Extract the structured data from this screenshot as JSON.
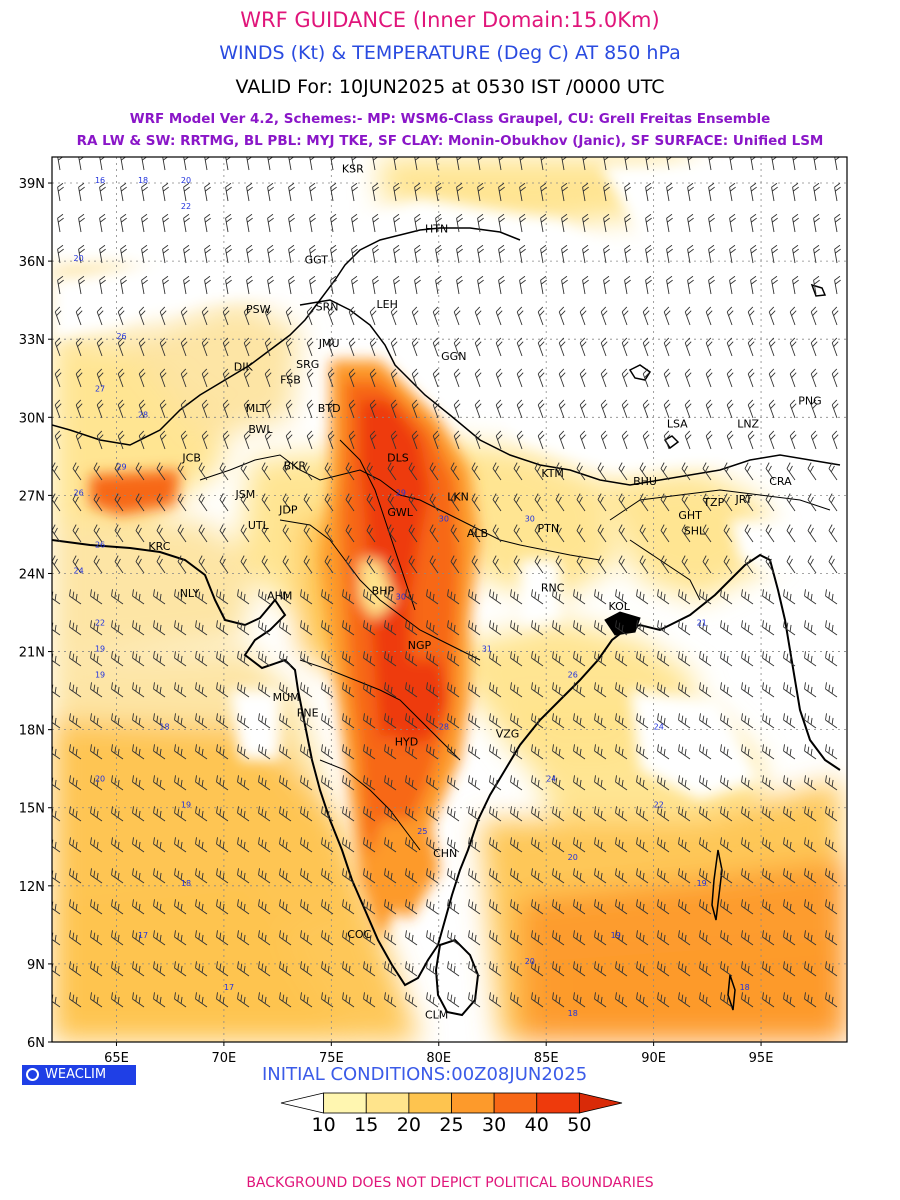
{
  "header": {
    "line1": "WRF GUIDANCE (Inner Domain:15.0Km)",
    "line2": "WINDS (Kt) & TEMPERATURE (Deg C) AT 850 hPa",
    "line3": "VALID For: 10JUN2025 at 0530 IST /0000 UTC",
    "line4": "WRF Model Ver 4.2, Schemes:- MP: WSM6-Class Graupel, CU: Grell Freitas Ensemble",
    "line5": "RA LW & SW: RRTMG, BL PBL: MYJ TKE, SF CLAY: Monin-Obukhov (Janic), SF SURFACE: Unified LSM"
  },
  "map": {
    "lat_labels": [
      "39N",
      "36N",
      "33N",
      "30N",
      "27N",
      "24N",
      "21N",
      "18N",
      "15N",
      "12N",
      "9N",
      "6N"
    ],
    "lon_labels": [
      "65E",
      "70E",
      "75E",
      "80E",
      "85E",
      "90E",
      "95E"
    ],
    "cities": [
      {
        "name": "KSR"
      },
      {
        "name": "HTN"
      },
      {
        "name": "GGT"
      },
      {
        "name": "PSW"
      },
      {
        "name": "SRN"
      },
      {
        "name": "LEH"
      },
      {
        "name": "JMU"
      },
      {
        "name": "GGN"
      },
      {
        "name": "DIK"
      },
      {
        "name": "SRG"
      },
      {
        "name": "FSB"
      },
      {
        "name": "MLT"
      },
      {
        "name": "BTD"
      },
      {
        "name": "BWL"
      },
      {
        "name": "DLS"
      },
      {
        "name": "JCB"
      },
      {
        "name": "BKR"
      },
      {
        "name": "JSM"
      },
      {
        "name": "JDP"
      },
      {
        "name": "UTL"
      },
      {
        "name": "GWL"
      },
      {
        "name": "LKN"
      },
      {
        "name": "KTM"
      },
      {
        "name": "ALB"
      },
      {
        "name": "PTN"
      },
      {
        "name": "KRC"
      },
      {
        "name": "NLY"
      },
      {
        "name": "AHM"
      },
      {
        "name": "BHP"
      },
      {
        "name": "RNC"
      },
      {
        "name": "KOL"
      },
      {
        "name": "NGP"
      },
      {
        "name": "MUM"
      },
      {
        "name": "PNE"
      },
      {
        "name": "HYD"
      },
      {
        "name": "VZG"
      },
      {
        "name": "CHN"
      },
      {
        "name": "COC"
      },
      {
        "name": "CLM"
      },
      {
        "name": "LSA"
      },
      {
        "name": "LNZ"
      },
      {
        "name": "PNG"
      },
      {
        "name": "BHU"
      },
      {
        "name": "GHT"
      },
      {
        "name": "SHL"
      },
      {
        "name": "TZP"
      },
      {
        "name": "JRT"
      },
      {
        "name": "CRA"
      }
    ]
  },
  "brand": {
    "label": "WEACLIM"
  },
  "initial_conditions": "INITIAL CONDITIONS:00Z08JUN2025",
  "colorbar": {
    "labels": [
      "10",
      "15",
      "20",
      "25",
      "30",
      "40",
      "50"
    ],
    "colors": [
      "#ffffff",
      "#fff6b0",
      "#ffe48c",
      "#fec44f",
      "#fd9a2b",
      "#f76716",
      "#ee3a0c",
      "#d92a08"
    ],
    "unit": "Deg C"
  },
  "footer": "BACKGROUND DOES NOT DEPICT POLITICAL BOUNDARIES",
  "chart_data": {
    "type": "heatmap",
    "title": "WINDS (Kt) & TEMPERATURE (Deg C) AT 850 hPa",
    "x_range_deg_e": [
      62,
      99
    ],
    "y_range_deg_n": [
      6,
      40
    ],
    "x_ticks": [
      65,
      70,
      75,
      80,
      85,
      90,
      95
    ],
    "y_ticks": [
      39,
      36,
      33,
      30,
      27,
      24,
      21,
      18,
      15,
      12,
      9,
      6
    ],
    "grid": true,
    "contour_levels_deg_c": [
      10,
      15,
      20,
      25,
      30,
      40,
      50
    ],
    "sample_temperatures": [
      {
        "lat": 39,
        "lon": 64,
        "t": 16
      },
      {
        "lat": 39,
        "lon": 66,
        "t": 18
      },
      {
        "lat": 39,
        "lon": 68,
        "t": 20
      },
      {
        "lat": 38,
        "lon": 68,
        "t": 22
      },
      {
        "lat": 36,
        "lon": 63,
        "t": 20
      },
      {
        "lat": 33,
        "lon": 65,
        "t": 26
      },
      {
        "lat": 31,
        "lon": 64,
        "t": 27
      },
      {
        "lat": 30,
        "lon": 66,
        "t": 28
      },
      {
        "lat": 28,
        "lon": 65,
        "t": 29
      },
      {
        "lat": 27,
        "lon": 63,
        "t": 26
      },
      {
        "lat": 27,
        "lon": 78,
        "t": 29
      },
      {
        "lat": 26,
        "lon": 80,
        "t": 30
      },
      {
        "lat": 26,
        "lon": 84,
        "t": 30
      },
      {
        "lat": 25,
        "lon": 64,
        "t": 26
      },
      {
        "lat": 24,
        "lon": 63,
        "t": 24
      },
      {
        "lat": 23,
        "lon": 78,
        "t": 30
      },
      {
        "lat": 22,
        "lon": 64,
        "t": 22
      },
      {
        "lat": 22,
        "lon": 92,
        "t": 21
      },
      {
        "lat": 21,
        "lon": 64,
        "t": 19
      },
      {
        "lat": 21,
        "lon": 82,
        "t": 31
      },
      {
        "lat": 20,
        "lon": 64,
        "t": 19
      },
      {
        "lat": 20,
        "lon": 86,
        "t": 26
      },
      {
        "lat": 18,
        "lon": 67,
        "t": 18
      },
      {
        "lat": 18,
        "lon": 80,
        "t": 28
      },
      {
        "lat": 18,
        "lon": 90,
        "t": 24
      },
      {
        "lat": 16,
        "lon": 64,
        "t": 20
      },
      {
        "lat": 16,
        "lon": 85,
        "t": 24
      },
      {
        "lat": 15,
        "lon": 68,
        "t": 19
      },
      {
        "lat": 15,
        "lon": 90,
        "t": 22
      },
      {
        "lat": 14,
        "lon": 79,
        "t": 25
      },
      {
        "lat": 13,
        "lon": 86,
        "t": 20
      },
      {
        "lat": 12,
        "lon": 68,
        "t": 18
      },
      {
        "lat": 12,
        "lon": 92,
        "t": 19
      },
      {
        "lat": 10,
        "lon": 66,
        "t": 17
      },
      {
        "lat": 10,
        "lon": 88,
        "t": 19
      },
      {
        "lat": 9,
        "lon": 84,
        "t": 20
      },
      {
        "lat": 8,
        "lon": 70,
        "t": 17
      },
      {
        "lat": 8,
        "lon": 94,
        "t": 18
      },
      {
        "lat": 7,
        "lon": 86,
        "t": 18
      }
    ]
  }
}
